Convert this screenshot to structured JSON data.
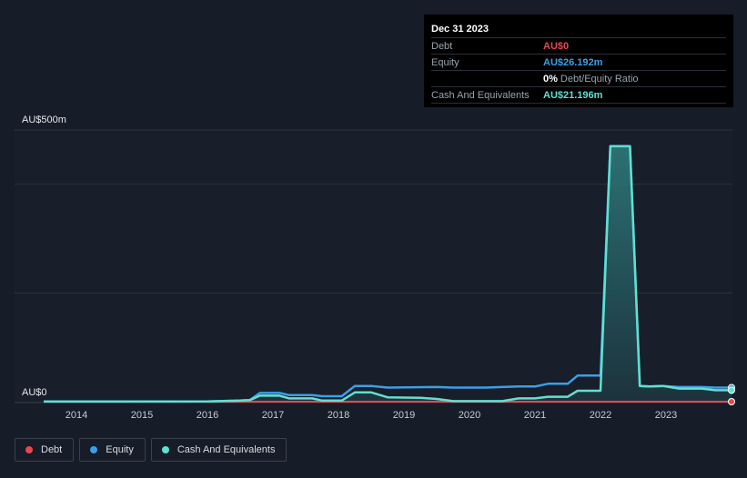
{
  "tooltip": {
    "date": "Dec 31 2023",
    "rows": [
      {
        "label": "Debt",
        "value": "AU$0",
        "color": "#e8474f"
      },
      {
        "label": "Equity",
        "value": "AU$26.192m",
        "color": "#3b9fe6"
      },
      {
        "label": "",
        "value": "0%",
        "suffix": "Debt/Equity Ratio",
        "color": "#ffffff"
      },
      {
        "label": "Cash And Equivalents",
        "value": "AU$21.196m",
        "color": "#62dfd0"
      }
    ]
  },
  "legend": [
    {
      "label": "Debt",
      "color": "#e8474f"
    },
    {
      "label": "Equity",
      "color": "#3b9fe6"
    },
    {
      "label": "Cash And Equivalents",
      "color": "#62dfd0"
    }
  ],
  "chart_data": {
    "type": "area",
    "title": "",
    "xlabel": "",
    "ylabel": "",
    "ylim": [
      0,
      500
    ],
    "y_unit": "AU$m",
    "y_tick_labels": [
      "AU$500m",
      "AU$0"
    ],
    "x_tick_labels": [
      "2014",
      "2015",
      "2016",
      "2017",
      "2018",
      "2019",
      "2020",
      "2021",
      "2022",
      "2023"
    ],
    "x_ticks": [
      2014,
      2015,
      2016,
      2017,
      2018,
      2019,
      2020,
      2021,
      2022,
      2023
    ],
    "xlim": [
      2013.5,
      2024.0
    ],
    "series": [
      {
        "name": "Debt",
        "color": "#e8474f",
        "points": [
          [
            2013.5,
            0
          ],
          [
            2024.0,
            0
          ]
        ]
      },
      {
        "name": "Equity",
        "color": "#3b9fe6",
        "points": [
          [
            2013.5,
            0.5
          ],
          [
            2016.0,
            0.5
          ],
          [
            2016.5,
            2
          ],
          [
            2016.65,
            3
          ],
          [
            2016.8,
            16
          ],
          [
            2017.1,
            16
          ],
          [
            2017.25,
            12
          ],
          [
            2017.6,
            12
          ],
          [
            2017.75,
            10
          ],
          [
            2018.05,
            10
          ],
          [
            2018.25,
            29
          ],
          [
            2018.5,
            29
          ],
          [
            2018.75,
            26
          ],
          [
            2019.5,
            27
          ],
          [
            2019.75,
            26
          ],
          [
            2020.25,
            26
          ],
          [
            2020.75,
            28
          ],
          [
            2021.0,
            28
          ],
          [
            2021.2,
            33
          ],
          [
            2021.5,
            33
          ],
          [
            2021.65,
            48
          ],
          [
            2022.0,
            48
          ],
          [
            2022.15,
            470
          ],
          [
            2022.45,
            470
          ],
          [
            2022.6,
            29
          ],
          [
            2022.75,
            28
          ],
          [
            2022.95,
            29
          ],
          [
            2023.2,
            27
          ],
          [
            2023.55,
            27
          ],
          [
            2023.75,
            26
          ],
          [
            2024.0,
            26
          ]
        ]
      },
      {
        "name": "Cash And Equivalents",
        "color": "#62dfd0",
        "points": [
          [
            2013.5,
            0.2
          ],
          [
            2016.0,
            0.3
          ],
          [
            2016.5,
            2
          ],
          [
            2016.65,
            3
          ],
          [
            2016.8,
            11
          ],
          [
            2017.1,
            11
          ],
          [
            2017.25,
            6
          ],
          [
            2017.6,
            6
          ],
          [
            2017.75,
            2
          ],
          [
            2018.05,
            2
          ],
          [
            2018.25,
            17
          ],
          [
            2018.5,
            17
          ],
          [
            2018.75,
            8
          ],
          [
            2019.25,
            7
          ],
          [
            2019.5,
            5
          ],
          [
            2019.75,
            1
          ],
          [
            2020.5,
            1
          ],
          [
            2020.75,
            6
          ],
          [
            2021.0,
            6
          ],
          [
            2021.2,
            9
          ],
          [
            2021.5,
            9
          ],
          [
            2021.65,
            20
          ],
          [
            2022.0,
            20
          ],
          [
            2022.15,
            470
          ],
          [
            2022.45,
            470
          ],
          [
            2022.6,
            29
          ],
          [
            2022.75,
            28
          ],
          [
            2022.95,
            29
          ],
          [
            2023.2,
            24
          ],
          [
            2023.55,
            24
          ],
          [
            2023.75,
            21
          ],
          [
            2024.0,
            21
          ]
        ]
      }
    ]
  }
}
